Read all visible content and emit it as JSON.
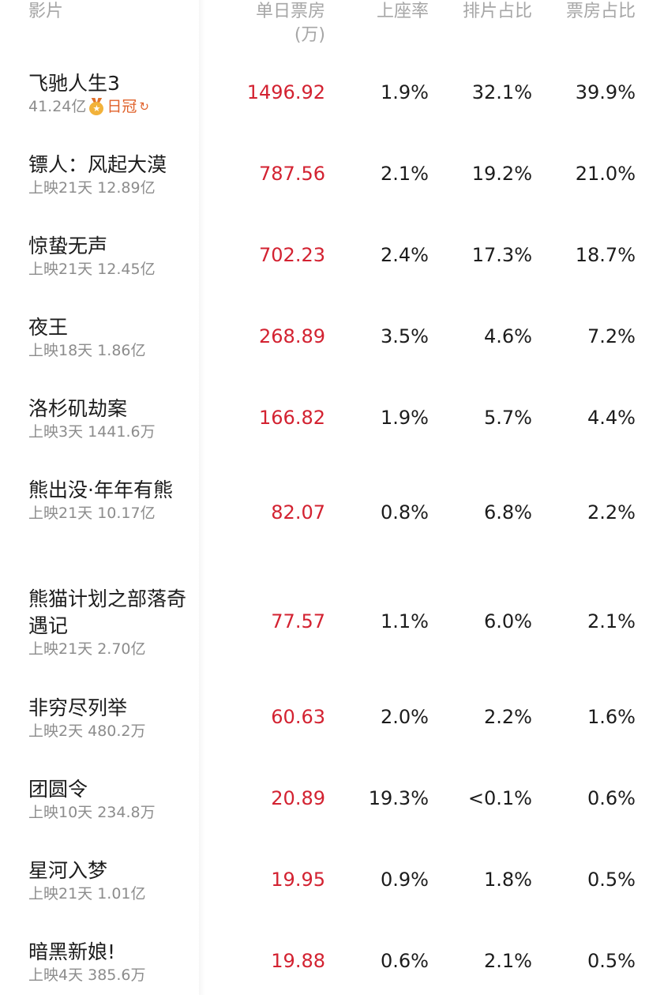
{
  "header": {
    "film": "影片",
    "box_office": "单日票房",
    "box_office_unit": "(万)",
    "seat_rate": "上座率",
    "schedule_share": "排片占比",
    "box_share": "票房占比"
  },
  "colors": {
    "box_office": "#d32231",
    "badge": "#e0612a"
  },
  "rows": [
    {
      "name": "飞驰人生3",
      "sub": "41.24亿",
      "badge": "日冠",
      "box": "1496.92",
      "seat": "1.9%",
      "sched": "32.1%",
      "share": "39.9%"
    },
    {
      "name": "镖人：风起大漠",
      "sub": "上映21天 12.89亿",
      "box": "787.56",
      "seat": "2.1%",
      "sched": "19.2%",
      "share": "21.0%"
    },
    {
      "name": "惊蛰无声",
      "sub": "上映21天 12.45亿",
      "box": "702.23",
      "seat": "2.4%",
      "sched": "17.3%",
      "share": "18.7%"
    },
    {
      "name": "夜王",
      "sub": "上映18天 1.86亿",
      "box": "268.89",
      "seat": "3.5%",
      "sched": "4.6%",
      "share": "7.2%"
    },
    {
      "name": "洛杉矶劫案",
      "sub": "上映3天 1441.6万",
      "box": "166.82",
      "seat": "1.9%",
      "sched": "5.7%",
      "share": "4.4%"
    },
    {
      "name": "熊出没·年年有熊",
      "sub": "上映21天 10.17亿",
      "box": "82.07",
      "seat": "0.8%",
      "sched": "6.8%",
      "share": "2.2%"
    },
    {
      "name": "熊猫计划之部落奇遇记",
      "sub": "上映21天 2.70亿",
      "box": "77.57",
      "seat": "1.1%",
      "sched": "6.0%",
      "share": "2.1%"
    },
    {
      "name": "非穷尽列举",
      "sub": "上映2天 480.2万",
      "box": "60.63",
      "seat": "2.0%",
      "sched": "2.2%",
      "share": "1.6%"
    },
    {
      "name": "团圆令",
      "sub": "上映10天 234.8万",
      "box": "20.89",
      "seat": "19.3%",
      "sched": "<0.1%",
      "share": "0.6%"
    },
    {
      "name": "星河入梦",
      "sub": "上映21天 1.01亿",
      "box": "19.95",
      "seat": "0.9%",
      "sched": "1.8%",
      "share": "0.5%"
    },
    {
      "name": "暗黑新娘!",
      "sub": "上映4天 385.6万",
      "box": "19.88",
      "seat": "0.6%",
      "sched": "2.1%",
      "share": "0.5%"
    }
  ]
}
